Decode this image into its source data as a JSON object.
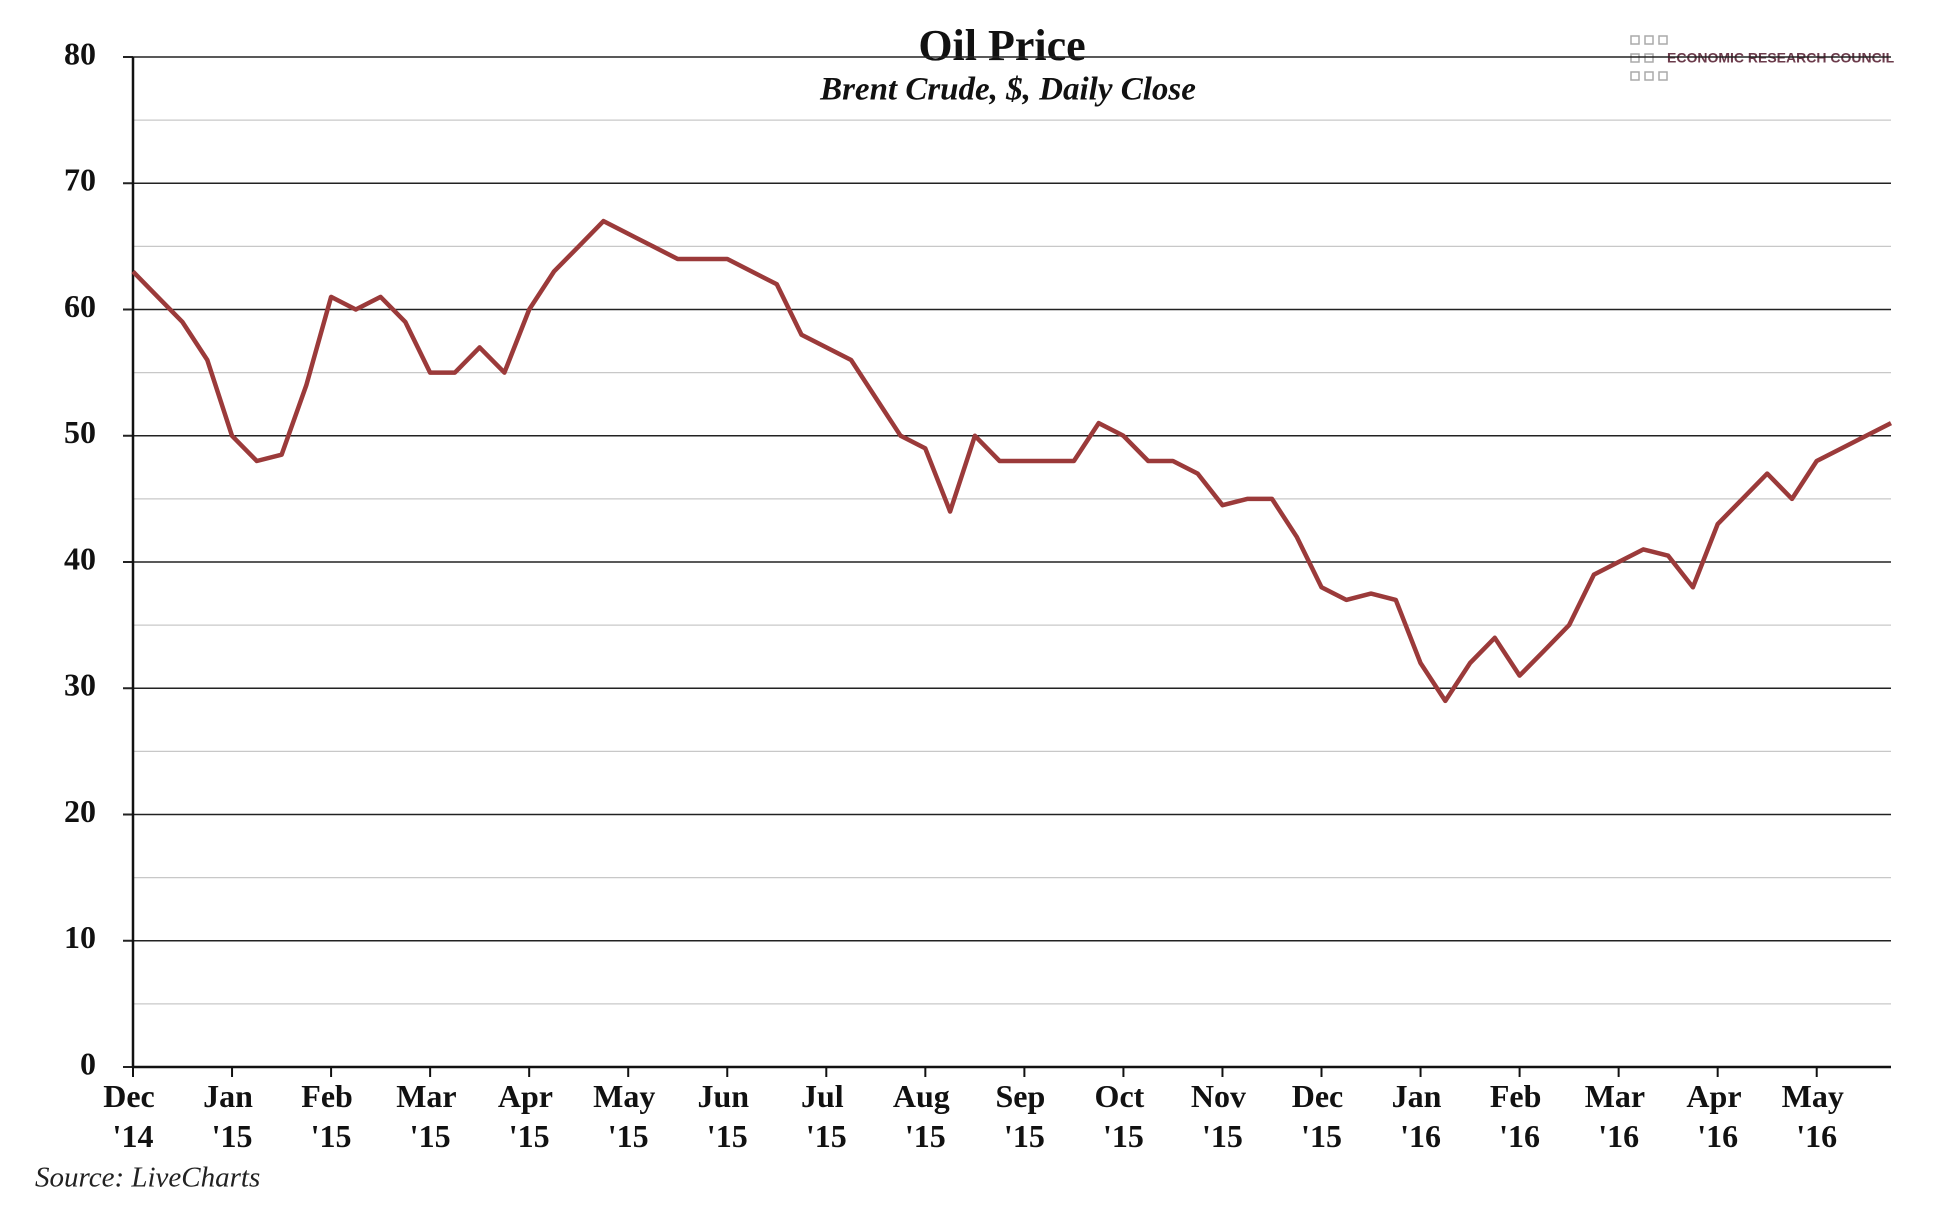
{
  "chart_data": {
    "type": "line",
    "title": "Oil Price",
    "subtitle": "Brent Crude, $, Daily Close",
    "source": "Source: LiveCharts",
    "logo_text": "ECONOMIC RESEARCH COUNCIL",
    "categories": [
      "Dec '14",
      null,
      null,
      null,
      "Jan '15",
      null,
      null,
      null,
      "Feb '15",
      null,
      null,
      null,
      "Mar '15",
      null,
      null,
      null,
      "Apr '15",
      null,
      null,
      null,
      "May '15",
      null,
      null,
      null,
      "Jun '15",
      null,
      null,
      null,
      "Jul '15",
      null,
      null,
      null,
      "Aug '15",
      null,
      null,
      null,
      "Sep '15",
      null,
      null,
      null,
      "Oct '15",
      null,
      null,
      null,
      "Nov '15",
      null,
      null,
      null,
      "Dec '15",
      null,
      null,
      null,
      "Jan '16",
      null,
      null,
      null,
      "Feb '16",
      null,
      null,
      null,
      "Mar '16",
      null,
      null,
      null,
      "Apr '16",
      null,
      null,
      null,
      "May '16",
      null,
      null,
      null
    ],
    "series": [
      {
        "name": "Brent Crude",
        "color": "#9b3a3a",
        "values": [
          63,
          61,
          59,
          56,
          50,
          48,
          48.5,
          54,
          61,
          60,
          61,
          59,
          55,
          55,
          57,
          55,
          60,
          63,
          65,
          67,
          66,
          65,
          64,
          64,
          64,
          63,
          62,
          58,
          57,
          56,
          53,
          50,
          49,
          44,
          50,
          48,
          48,
          48,
          48,
          51,
          50,
          48,
          48,
          47,
          44.5,
          45,
          45,
          42,
          38,
          37,
          37.5,
          37,
          32,
          29,
          32,
          34,
          31,
          33,
          35,
          39,
          40,
          41,
          40.5,
          38,
          43,
          45,
          47,
          45,
          48,
          49,
          50,
          51
        ]
      }
    ],
    "ylim": [
      0,
      80
    ],
    "yticks": [
      0,
      10,
      20,
      30,
      40,
      50,
      60,
      70,
      80
    ],
    "minor_yticks": [
      5,
      15,
      25,
      35,
      45,
      55,
      65,
      75
    ],
    "grid": true
  }
}
